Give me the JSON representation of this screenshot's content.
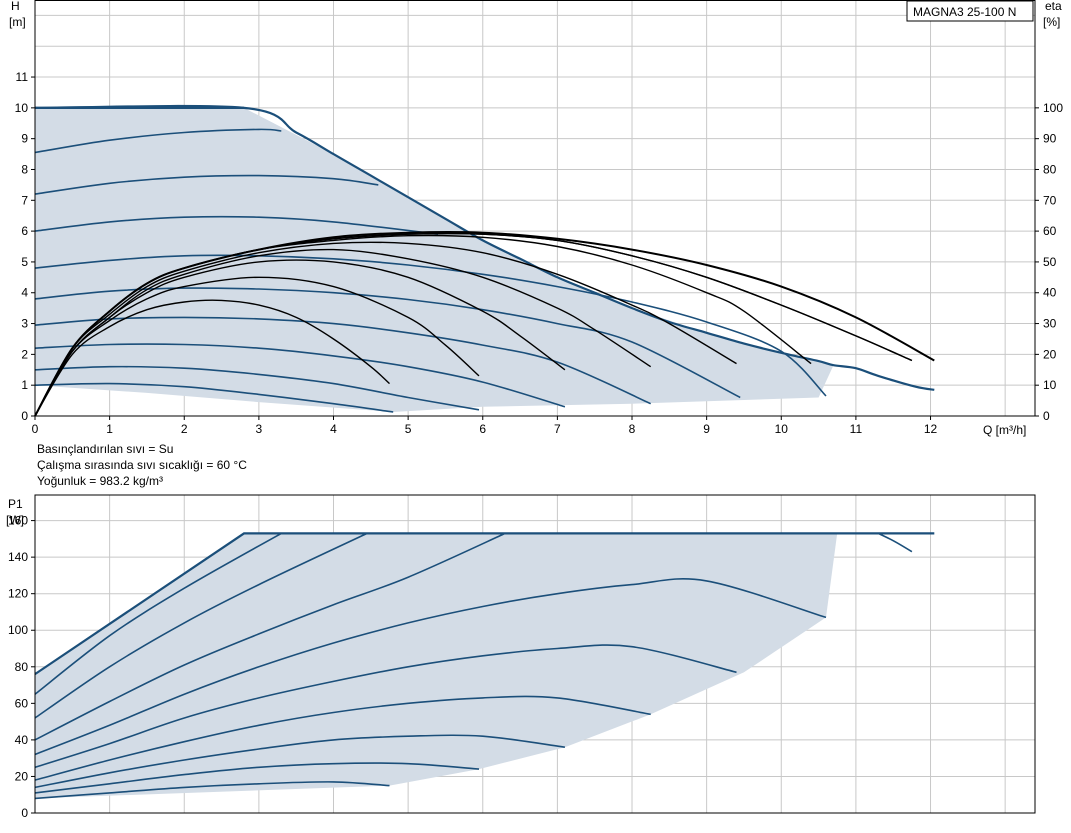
{
  "model_label": "MAGNA3 25-100 N",
  "fluid_info": [
    "Basınçlandırılan sıvı = Su",
    "Çalışma sırasında sıvı sıcaklığı = 60 °C",
    "Yoğunluk = 983.2 kg/m³"
  ],
  "colors": {
    "curve": "#1b4f7a",
    "eff": "#000000",
    "fill": "#d3dce6",
    "grid": "#c8c8c8"
  },
  "chart_data": [
    {
      "type": "line",
      "name": "head",
      "ylabel_top": "H",
      "ylabel_unit": "[m]",
      "y2label_top": "eta",
      "y2label_unit": "[%]",
      "xlabel": "Q [m³/h]",
      "xlim": [
        0,
        13.4
      ],
      "ylim": [
        0,
        13.5
      ],
      "y2lim": [
        0,
        135
      ],
      "xticks": [
        "0",
        "1",
        "2",
        "3",
        "4",
        "5",
        "6",
        "7",
        "8",
        "9",
        "10",
        "11",
        "12"
      ],
      "yticks": [
        "0",
        "1",
        "2",
        "3",
        "4",
        "5",
        "6",
        "7",
        "8",
        "9",
        "10",
        "11"
      ],
      "y2ticks": [
        "0",
        "10",
        "20",
        "30",
        "40",
        "50",
        "60",
        "70",
        "80",
        "90",
        "100"
      ],
      "envelope": [
        [
          0,
          10
        ],
        [
          2.8,
          10
        ],
        [
          4,
          8.5
        ],
        [
          5,
          7.1
        ],
        [
          6,
          5.7
        ],
        [
          7,
          4.5
        ],
        [
          8,
          3.5
        ],
        [
          9,
          2.7
        ],
        [
          10,
          2.05
        ],
        [
          10.7,
          1.65
        ],
        [
          10.5,
          0.6
        ],
        [
          8,
          0.4
        ],
        [
          6,
          0.3
        ],
        [
          4.8,
          0.13
        ],
        [
          3,
          0.45
        ],
        [
          1.5,
          0.75
        ],
        [
          0,
          1
        ]
      ],
      "head_curves": [
        {
          "x": [
            0,
            1,
            2,
            3,
            4,
            4.8
          ],
          "y": [
            1,
            1.05,
            0.95,
            0.7,
            0.4,
            0.13
          ]
        },
        {
          "x": [
            0,
            1,
            2,
            3,
            4,
            5,
            5.95
          ],
          "y": [
            1.5,
            1.6,
            1.55,
            1.35,
            1.05,
            0.6,
            0.2
          ]
        },
        {
          "x": [
            0,
            1,
            2,
            3,
            4,
            5,
            6,
            7.1
          ],
          "y": [
            2.2,
            2.32,
            2.32,
            2.2,
            1.95,
            1.6,
            1.1,
            0.3
          ]
        },
        {
          "x": [
            0,
            1,
            2,
            3,
            4,
            5,
            6,
            7,
            8.25
          ],
          "y": [
            2.95,
            3.15,
            3.2,
            3.15,
            3.0,
            2.7,
            2.3,
            1.75,
            0.4
          ]
        },
        {
          "x": [
            0,
            1,
            2,
            3,
            4,
            5,
            6,
            7,
            8,
            9.45
          ],
          "y": [
            3.8,
            4.05,
            4.15,
            4.12,
            4.0,
            3.78,
            3.45,
            3.0,
            2.4,
            0.6
          ]
        },
        {
          "x": [
            0,
            1,
            2,
            3,
            4,
            5,
            6,
            7,
            8,
            9,
            10,
            10.6
          ],
          "y": [
            4.8,
            5.05,
            5.2,
            5.2,
            5.1,
            4.9,
            4.6,
            4.2,
            3.7,
            3.05,
            2.1,
            0.65
          ]
        },
        {
          "x": [
            0,
            1,
            2,
            3,
            4,
            5.4
          ],
          "y": [
            6.0,
            6.3,
            6.45,
            6.45,
            6.3,
            5.9
          ]
        },
        {
          "x": [
            0,
            1,
            2,
            3,
            4,
            4.6
          ],
          "y": [
            7.2,
            7.55,
            7.75,
            7.8,
            7.7,
            7.5
          ]
        },
        {
          "x": [
            0,
            1,
            2,
            3,
            3.3
          ],
          "y": [
            8.55,
            8.95,
            9.2,
            9.3,
            9.25
          ]
        },
        {
          "x": [
            0,
            2.8
          ],
          "y": [
            10,
            10
          ]
        },
        {
          "x": [
            0,
            2.8,
            3.5,
            4,
            4.5,
            5,
            5.5,
            6,
            6.5,
            7,
            7.5,
            8,
            8.5,
            9,
            9.5,
            10,
            10.5,
            10.7,
            11,
            11.3,
            11.8,
            12.05
          ],
          "y": [
            10,
            10,
            9.2,
            8.5,
            7.8,
            7.1,
            6.4,
            5.7,
            5.1,
            4.5,
            4.0,
            3.5,
            3.05,
            2.7,
            2.35,
            2.05,
            1.78,
            1.65,
            1.55,
            1.3,
            0.95,
            0.85
          ]
        }
      ],
      "eff_curves": [
        {
          "x": [
            0,
            0.5,
            1,
            1.5,
            2,
            2.5,
            3,
            3.5,
            4,
            4.5,
            4.75
          ],
          "y": [
            0,
            20,
            29,
            34.5,
            37,
            37.5,
            36,
            32,
            25,
            16,
            10.5
          ]
        },
        {
          "x": [
            0,
            0.5,
            1,
            1.5,
            2,
            3,
            4,
            5,
            5.5,
            5.95
          ],
          "y": [
            0,
            21,
            31,
            38,
            42,
            45,
            42,
            32,
            23,
            13
          ]
        },
        {
          "x": [
            0,
            0.5,
            1,
            1.5,
            2,
            3,
            4,
            5,
            6,
            6.5,
            7.1
          ],
          "y": [
            0,
            21,
            32,
            40,
            45,
            50,
            50,
            45,
            34,
            26,
            15
          ]
        },
        {
          "x": [
            0,
            0.5,
            1,
            1.5,
            2,
            3,
            4,
            5,
            6,
            7,
            7.5,
            8.25
          ],
          "y": [
            0,
            21,
            32,
            41,
            46,
            52,
            54,
            51,
            45,
            35,
            28,
            16
          ]
        },
        {
          "x": [
            0,
            0.5,
            1,
            1.5,
            2,
            3,
            4,
            5,
            6,
            7,
            8,
            8.5,
            9.4
          ],
          "y": [
            0,
            22,
            33,
            42,
            47,
            53,
            56,
            56,
            53,
            46,
            36,
            30,
            17
          ]
        },
        {
          "x": [
            0,
            0.5,
            1,
            1.5,
            2,
            3,
            4,
            5,
            6,
            7,
            8,
            9,
            9.5,
            10.4
          ],
          "y": [
            0,
            22,
            34,
            43,
            48,
            54,
            57,
            58.5,
            58,
            55,
            49,
            40,
            34,
            17
          ]
        },
        {
          "x": [
            0,
            0.5,
            1,
            1.5,
            2,
            3,
            4,
            5,
            6,
            7,
            8,
            9,
            10,
            11,
            11.75
          ],
          "y": [
            0,
            22,
            34,
            43,
            48,
            54,
            57.5,
            59,
            59,
            57,
            52,
            45,
            36,
            26,
            18
          ]
        },
        {
          "x": [
            0,
            0.5,
            1,
            1.5,
            2,
            3,
            4,
            5,
            6,
            7,
            8,
            9,
            10,
            11,
            11.75
          ],
          "y": [
            0,
            22,
            34,
            43,
            48,
            54,
            57.5,
            59,
            59,
            57,
            52,
            45,
            36,
            26,
            18
          ]
        },
        {
          "x": [
            0,
            0.5,
            1,
            1.5,
            2,
            3,
            4,
            5,
            6,
            7,
            8,
            9,
            10,
            11,
            12.05
          ],
          "y": [
            0,
            22,
            34,
            43,
            48,
            54,
            58,
            59.5,
            59.5,
            57.5,
            54,
            49,
            42,
            32,
            18
          ]
        }
      ]
    },
    {
      "type": "line",
      "name": "power",
      "ylabel_top": "P1",
      "ylabel_unit": "[W]",
      "xlim": [
        0,
        13.4
      ],
      "ylim": [
        0,
        174
      ],
      "yticks": [
        "0",
        "20",
        "40",
        "60",
        "80",
        "100",
        "120",
        "140",
        "160"
      ],
      "envelope": [
        [
          0,
          76
        ],
        [
          2.8,
          153
        ],
        [
          10.75,
          153
        ],
        [
          10.6,
          107
        ],
        [
          9.5,
          77
        ],
        [
          8.25,
          54
        ],
        [
          7.1,
          36
        ],
        [
          5.95,
          24
        ],
        [
          4.75,
          15
        ],
        [
          0,
          8
        ]
      ],
      "power_curves": [
        {
          "x": [
            0,
            1,
            2,
            3,
            4,
            4.75
          ],
          "y": [
            8,
            11,
            14,
            16,
            17,
            15
          ]
        },
        {
          "x": [
            0,
            1,
            2,
            3,
            4,
            5,
            5.95
          ],
          "y": [
            11,
            16,
            21,
            25,
            27,
            27,
            24
          ]
        },
        {
          "x": [
            0,
            1,
            2,
            3,
            4,
            5,
            6,
            7.1
          ],
          "y": [
            14,
            22,
            29,
            35,
            40,
            42,
            42,
            36
          ]
        },
        {
          "x": [
            0,
            1,
            2,
            3,
            4,
            5,
            6,
            7,
            8.25
          ],
          "y": [
            18,
            29,
            39,
            48,
            55,
            60,
            63,
            63,
            54
          ]
        },
        {
          "x": [
            0,
            1,
            2,
            3,
            4,
            5,
            6,
            7,
            8,
            9.4
          ],
          "y": [
            25,
            38,
            52,
            63,
            72,
            80,
            86,
            90,
            91,
            77
          ]
        },
        {
          "x": [
            0,
            1,
            2,
            3,
            4,
            5,
            6,
            7,
            8,
            9,
            10.6
          ],
          "y": [
            32,
            48,
            65,
            80,
            93,
            104,
            113,
            120,
            125,
            127,
            107
          ]
        },
        {
          "x": [
            0,
            1,
            2,
            3,
            4,
            5,
            6.3
          ],
          "y": [
            40,
            61,
            81,
            98,
            114,
            129,
            153
          ]
        },
        {
          "x": [
            0,
            1,
            2,
            3,
            4.45
          ],
          "y": [
            52,
            80,
            104,
            125,
            153
          ]
        },
        {
          "x": [
            0,
            1,
            2,
            3.3
          ],
          "y": [
            65,
            97,
            123,
            153
          ]
        },
        {
          "x": [
            0,
            2.8,
            12.05
          ],
          "y": [
            76,
            153,
            153
          ]
        },
        {
          "x": [
            11.3,
            11.5,
            11.75
          ],
          "y": [
            153,
            149,
            143
          ]
        }
      ]
    }
  ]
}
